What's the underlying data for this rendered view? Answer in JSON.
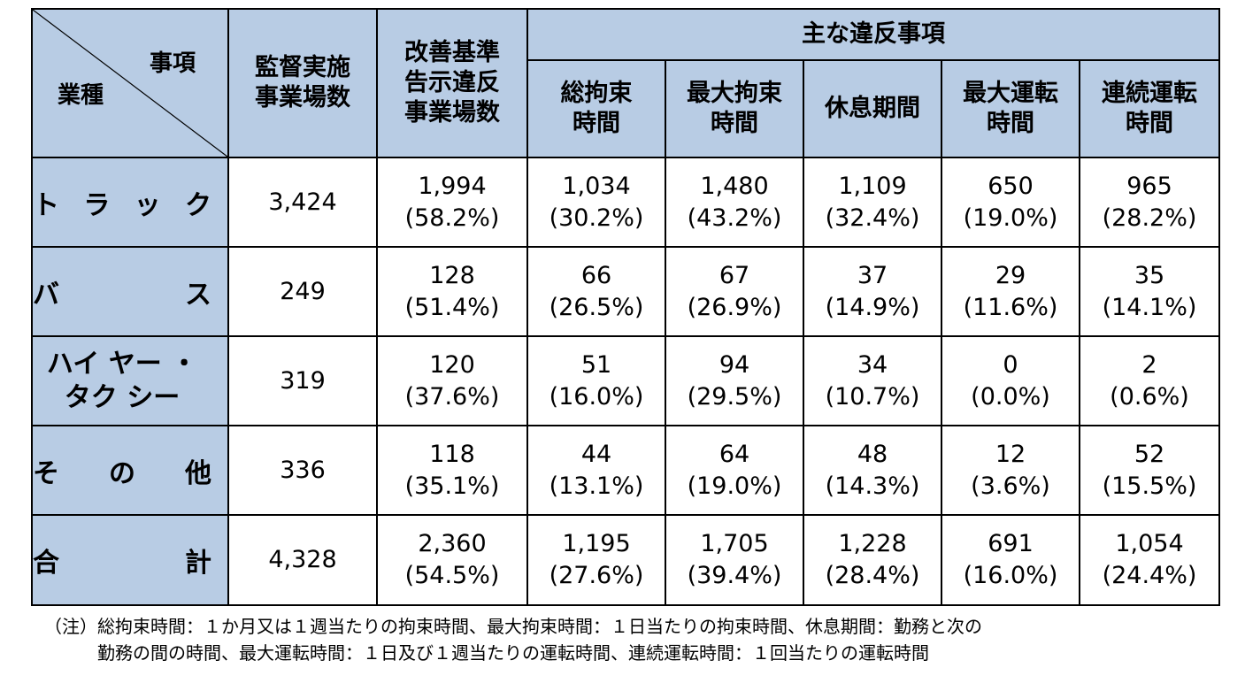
{
  "header": {
    "corner_top": "事項",
    "corner_bottom": "業種",
    "col_inspected": [
      "監督実施",
      "事業場数"
    ],
    "col_violation": [
      "改善基準",
      "告示違反",
      "事業場数"
    ],
    "group_label": "主な違反事項",
    "sub_cols": [
      [
        "総拘束",
        "時間"
      ],
      [
        "最大拘束",
        "時間"
      ],
      [
        "休息期間"
      ],
      [
        "最大運転",
        "時間"
      ],
      [
        "連続運転",
        "時間"
      ]
    ]
  },
  "rows": [
    {
      "label": [
        "ト",
        "ラ",
        "ッ",
        "ク"
      ],
      "inspected": "3,424",
      "cells": [
        [
          "1,994",
          "(58.2%)"
        ],
        [
          "1,034",
          "(30.2%)"
        ],
        [
          "1,480",
          "(43.2%)"
        ],
        [
          "1,109",
          "(32.4%)"
        ],
        [
          "650",
          "(19.0%)"
        ],
        [
          "965",
          "(28.2%)"
        ]
      ]
    },
    {
      "label": [
        "バ",
        "ス"
      ],
      "inspected": "249",
      "cells": [
        [
          "128",
          "(51.4%)"
        ],
        [
          "66",
          "(26.5%)"
        ],
        [
          "67",
          "(26.9%)"
        ],
        [
          "37",
          "(14.9%)"
        ],
        [
          "29",
          "(11.6%)"
        ],
        [
          "35",
          "(14.1%)"
        ]
      ]
    },
    {
      "label_lines": [
        [
          "ハ",
          "イ",
          "ヤ",
          "ー",
          "・"
        ],
        [
          "タ",
          "ク",
          "シ",
          "ー"
        ]
      ],
      "inspected": "319",
      "cells": [
        [
          "120",
          "(37.6%)"
        ],
        [
          "51",
          "(16.0%)"
        ],
        [
          "94",
          "(29.5%)"
        ],
        [
          "34",
          "(10.7%)"
        ],
        [
          "0",
          "(0.0%)"
        ],
        [
          "2",
          "(0.6%)"
        ]
      ]
    },
    {
      "label": [
        "そ",
        "の",
        "他"
      ],
      "inspected": "336",
      "cells": [
        [
          "118",
          "(35.1%)"
        ],
        [
          "44",
          "(13.1%)"
        ],
        [
          "64",
          "(19.0%)"
        ],
        [
          "48",
          "(14.3%)"
        ],
        [
          "12",
          "(3.6%)"
        ],
        [
          "52",
          "(15.5%)"
        ]
      ]
    },
    {
      "label": [
        "合",
        "計"
      ],
      "inspected": "4,328",
      "cells": [
        [
          "2,360",
          "(54.5%)"
        ],
        [
          "1,195",
          "(27.6%)"
        ],
        [
          "1,705",
          "(39.4%)"
        ],
        [
          "1,228",
          "(28.4%)"
        ],
        [
          "691",
          "(16.0%)"
        ],
        [
          "1,054",
          "(24.4%)"
        ]
      ]
    }
  ],
  "note": {
    "line1": "（注）総拘束時間：１か月又は１週当たりの拘束時間、最大拘束時間：１日当たりの拘束時間、休息期間：勤務と次の",
    "line2": "勤務の間の時間、最大運転時間：１日及び１週当たりの運転時間、連続運転時間：１回当たりの運転時間"
  },
  "colors": {
    "header_bg": "#b8cce4",
    "border": "#000000"
  }
}
